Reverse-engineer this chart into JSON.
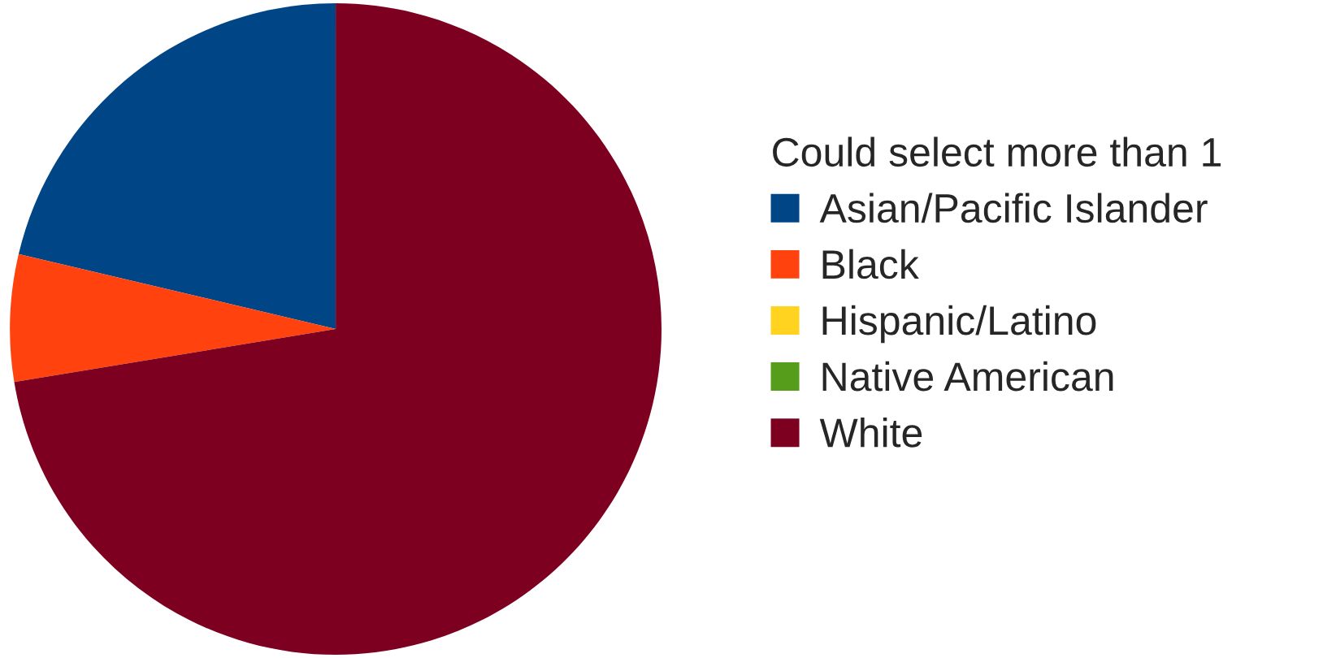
{
  "chart_data": {
    "type": "pie",
    "legend_title": "Could select more than 1",
    "categories": [
      "Asian/Pacific Islander",
      "Black",
      "Hispanic/Latino",
      "Native American",
      "White"
    ],
    "values": [
      21.3,
      6.3,
      0,
      0,
      72.4
    ],
    "colors": [
      "#004586",
      "#ff420e",
      "#ffd320",
      "#579d1c",
      "#7e0021"
    ],
    "legend": "right"
  }
}
